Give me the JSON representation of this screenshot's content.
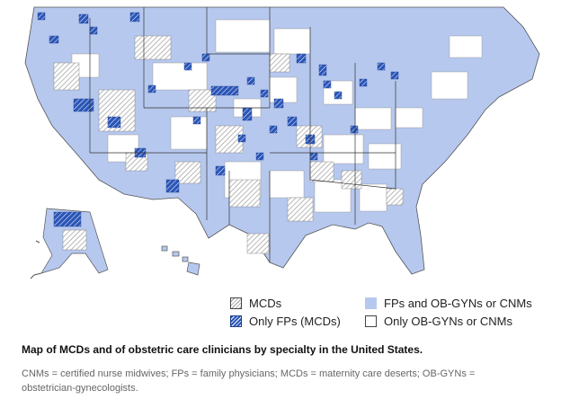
{
  "legend": {
    "items": [
      {
        "key": "mcd",
        "label": "MCDs"
      },
      {
        "key": "only_fp",
        "label": "Only FPs (MCDs)"
      },
      {
        "key": "fp_ob",
        "label": "FPs and OB-GYNs or CNMs"
      },
      {
        "key": "only_ob",
        "label": "Only OB-GYNs or CNMs"
      }
    ]
  },
  "caption": "Map of MCDs and of obstetric care clinicians by specialty in the United States.",
  "footnote": "CNMs = certified nurse midwives; FPs = family physicians; MCDs = maternity care deserts; OB-GYNs = obstetrician-gynecologists.",
  "colors": {
    "fp_ob_fill": "#b7c8ef",
    "only_fp_fill": "#2b56b8",
    "mcd_hatch": "#9a9a9a",
    "border": "#555555"
  }
}
